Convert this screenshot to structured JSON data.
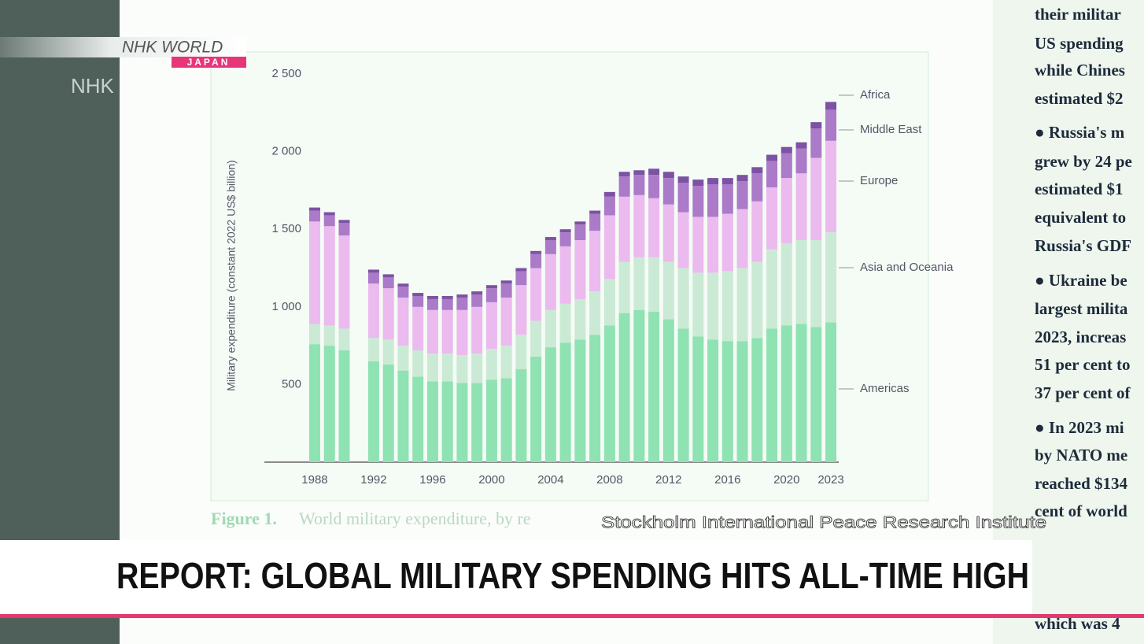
{
  "logo": {
    "brand": "NHK WORLD",
    "sub": "JAPAN",
    "ghost": "NHK"
  },
  "chart_data": {
    "type": "stacked_bar",
    "ylabel": "Military expenditure (constant 2022 US$ billion)",
    "x": [
      1988,
      1989,
      1990,
      1992,
      1993,
      1994,
      1995,
      1996,
      1997,
      1998,
      1999,
      2000,
      2001,
      2002,
      2003,
      2004,
      2005,
      2006,
      2007,
      2008,
      2009,
      2010,
      2011,
      2012,
      2013,
      2014,
      2015,
      2016,
      2017,
      2018,
      2019,
      2020,
      2021,
      2022,
      2023
    ],
    "xlim": [
      1987.5,
      2023.5
    ],
    "xticks": [
      1988,
      1992,
      1996,
      2000,
      2004,
      2008,
      2012,
      2016,
      2020,
      2023
    ],
    "ylim": [
      0,
      2500
    ],
    "yticks": [
      500,
      {
        "value": 1000,
        "label": "1 000"
      },
      {
        "value": 1500,
        "label": "1 500"
      },
      {
        "value": 2000,
        "label": "2 000"
      },
      {
        "value": 2500,
        "label": "2 500"
      }
    ],
    "grid": false,
    "series": [
      {
        "name": "Americas",
        "color": "#8fe2b2",
        "values": [
          760,
          750,
          720,
          650,
          630,
          590,
          550,
          520,
          520,
          510,
          510,
          530,
          540,
          600,
          680,
          740,
          770,
          790,
          820,
          880,
          960,
          980,
          970,
          920,
          860,
          810,
          790,
          780,
          780,
          800,
          860,
          880,
          890,
          870,
          900
        ]
      },
      {
        "name": "Asia and Oceania",
        "color": "#cbead5",
        "values": [
          130,
          130,
          140,
          150,
          160,
          160,
          170,
          180,
          180,
          180,
          190,
          200,
          210,
          220,
          230,
          240,
          250,
          260,
          280,
          300,
          330,
          340,
          350,
          370,
          390,
          410,
          430,
          450,
          470,
          490,
          510,
          530,
          540,
          560,
          580
        ]
      },
      {
        "name": "Europe",
        "color": "#ebbaee",
        "values": [
          660,
          640,
          600,
          350,
          330,
          310,
          280,
          280,
          280,
          290,
          300,
          300,
          310,
          320,
          340,
          360,
          370,
          380,
          390,
          410,
          420,
          400,
          380,
          370,
          360,
          360,
          360,
          370,
          380,
          390,
          400,
          420,
          430,
          530,
          590
        ]
      },
      {
        "name": "Middle East",
        "color": "#ab7ac8",
        "values": [
          70,
          70,
          80,
          70,
          70,
          70,
          70,
          70,
          70,
          80,
          80,
          90,
          90,
          90,
          90,
          90,
          90,
          100,
          110,
          120,
          130,
          130,
          150,
          170,
          190,
          200,
          210,
          190,
          180,
          180,
          170,
          160,
          160,
          190,
          200
        ]
      },
      {
        "name": "Africa",
        "color": "#7c52a3",
        "values": [
          20,
          20,
          20,
          20,
          20,
          20,
          20,
          20,
          20,
          20,
          20,
          20,
          20,
          20,
          20,
          20,
          20,
          20,
          20,
          30,
          30,
          30,
          40,
          40,
          40,
          40,
          40,
          40,
          40,
          40,
          40,
          40,
          40,
          40,
          50
        ]
      }
    ]
  },
  "caption": {
    "label": "Figure 1.",
    "text": "World military expenditure, by re"
  },
  "source": "Stockholm International Peace Research Institute",
  "headline": "REPORT: GLOBAL MILITARY SPENDING HITS ALL-TIME HIGH",
  "side_text": [
    "their militar",
    "US spending",
    "while Chines",
    "estimated $2",
    "● Russia's m",
    "grew by 24 pe",
    "estimated $1",
    "equivalent to",
    "Russia's GDF",
    "● Ukraine be",
    "largest milita",
    "2023, increas",
    "51 per cent to",
    "37 per cent of",
    "● In 2023 mi",
    "by NATO me",
    "reached $134",
    "cent of world",
    "which was 4"
  ]
}
